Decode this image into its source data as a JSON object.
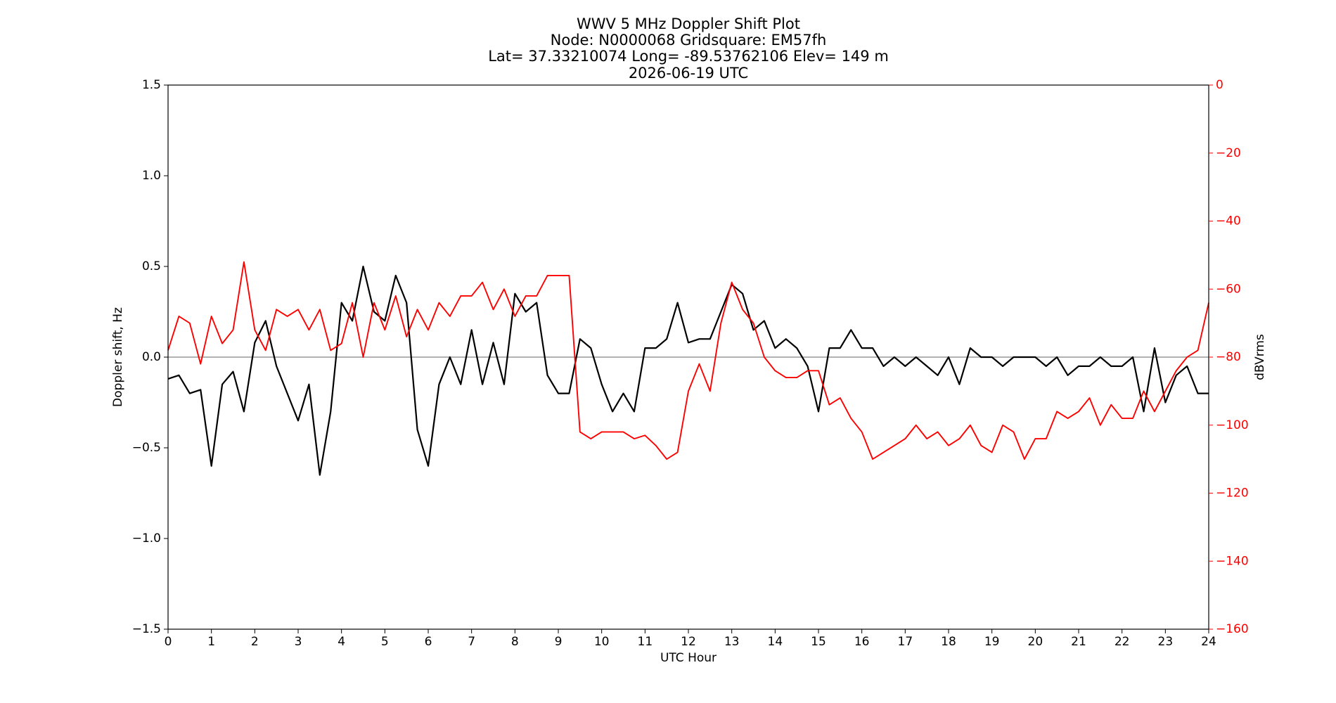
{
  "chart_data": {
    "type": "line",
    "title": [
      "WWV 5 MHz Doppler Shift Plot",
      "Node:  N0000068     Gridsquare:  EM57fh",
      "Lat= 37.33210074    Long= -89.53762106    Elev= 149 m",
      "2026-06-19  UTC"
    ],
    "xlabel": "UTC Hour",
    "ylabel": "Doppler shift, Hz",
    "y2label": "dBVrms",
    "xlim": [
      0,
      24
    ],
    "ylim": [
      -1.5,
      1.5
    ],
    "y2lim": [
      -160,
      0
    ],
    "xticks": [
      0,
      1,
      2,
      3,
      4,
      5,
      6,
      7,
      8,
      9,
      10,
      11,
      12,
      13,
      14,
      15,
      16,
      17,
      18,
      19,
      20,
      21,
      22,
      23,
      24
    ],
    "yticks": [
      {
        "value": -1.5,
        "label": "−1.5"
      },
      {
        "value": -1.0,
        "label": "−1.0"
      },
      {
        "value": -0.5,
        "label": "−0.5"
      },
      {
        "value": 0.0,
        "label": "0.0"
      },
      0.5,
      {
        "value": 1.0,
        "label": "1.0"
      },
      1.5
    ],
    "y2ticks": [
      {
        "value": -160,
        "label": "−160"
      },
      {
        "value": -140,
        "label": "−140"
      },
      {
        "value": -120,
        "label": "−120"
      },
      {
        "value": -100,
        "label": "−100"
      },
      {
        "value": -80,
        "label": "−80"
      },
      {
        "value": -60,
        "label": "−60"
      },
      {
        "value": -40,
        "label": "−40"
      },
      {
        "value": -20,
        "label": "−20"
      },
      0
    ],
    "y2color": "#ff0000",
    "hline": 0,
    "grid": false,
    "x": [
      0,
      0.25,
      0.5,
      0.75,
      1,
      1.25,
      1.5,
      1.75,
      2,
      2.25,
      2.5,
      2.75,
      3,
      3.25,
      3.5,
      3.75,
      4,
      4.25,
      4.5,
      4.75,
      5,
      5.25,
      5.5,
      5.75,
      6,
      6.25,
      6.5,
      6.75,
      7,
      7.25,
      7.5,
      7.75,
      8,
      8.25,
      8.5,
      8.75,
      9,
      9.25,
      9.5,
      9.75,
      10,
      10.25,
      10.5,
      10.75,
      11,
      11.25,
      11.5,
      11.75,
      12,
      12.25,
      12.5,
      12.75,
      13,
      13.25,
      13.5,
      13.75,
      14,
      14.25,
      14.5,
      14.75,
      15,
      15.25,
      15.5,
      15.75,
      16,
      16.25,
      16.5,
      16.75,
      17,
      17.25,
      17.5,
      17.75,
      18,
      18.25,
      18.5,
      18.75,
      19,
      19.25,
      19.5,
      19.75,
      20,
      20.25,
      20.5,
      20.75,
      21,
      21.25,
      21.5,
      21.75,
      22,
      22.25,
      22.5,
      22.75,
      23,
      23.25,
      23.5,
      23.75,
      24
    ],
    "series": [
      {
        "color": "#000000",
        "values": [
          -0.12,
          -0.1,
          -0.2,
          -0.18,
          -0.6,
          -0.15,
          -0.08,
          -0.3,
          0.08,
          0.2,
          -0.05,
          -0.2,
          -0.35,
          -0.15,
          -0.65,
          -0.3,
          0.3,
          0.2,
          0.5,
          0.25,
          0.2,
          0.45,
          0.3,
          -0.4,
          -0.6,
          -0.15,
          0,
          -0.15,
          0.15,
          -0.15,
          0.08,
          -0.15,
          0.35,
          0.25,
          0.3,
          -0.1,
          -0.2,
          -0.2,
          0.1,
          0.05,
          -0.15,
          -0.3,
          -0.2,
          -0.3,
          0.05,
          0.05,
          0.1,
          0.3,
          0.08,
          0.1,
          0.1,
          0.25,
          0.4,
          0.35,
          0.15,
          0.2,
          0.05,
          0.1,
          0.05,
          -0.05,
          -0.3,
          0.05,
          0.05,
          0.15,
          0.05,
          0.05,
          -0.05,
          0,
          -0.05,
          0,
          -0.05,
          -0.1,
          0,
          -0.15,
          0.05,
          0,
          0,
          -0.05,
          0,
          0,
          0,
          -0.05,
          0,
          -0.1,
          -0.05,
          -0.05,
          0,
          -0.05,
          -0.05,
          0,
          -0.3,
          0.05,
          -0.25,
          -0.1,
          -0.05,
          -0.2,
          -0.2
        ]
      },
      {
        "color": "#ff0000",
        "axis": "y2",
        "values": [
          -78,
          -68,
          -70,
          -82,
          -68,
          -76,
          -72,
          -52,
          -72,
          -78,
          -66,
          -68,
          -66,
          -72,
          -66,
          -78,
          -76,
          -64,
          -80,
          -64,
          -72,
          -62,
          -74,
          -66,
          -72,
          -64,
          -68,
          -62,
          -62,
          -58,
          -66,
          -60,
          -68,
          -62,
          -62,
          -56,
          -56,
          -56,
          -102,
          -104,
          -102,
          -102,
          -102,
          -104,
          -103,
          -106,
          -110,
          -108,
          -90,
          -82,
          -90,
          -70,
          -58,
          -66,
          -70,
          -80,
          -84,
          -86,
          -86,
          -84,
          -84,
          -94,
          -92,
          -98,
          -102,
          -110,
          -108,
          -106,
          -104,
          -100,
          -104,
          -102,
          -106,
          -104,
          -100,
          -106,
          -108,
          -100,
          -102,
          -110,
          -104,
          -104,
          -96,
          -98,
          -96,
          -92,
          -100,
          -94,
          -98,
          -98,
          -90,
          -96,
          -90,
          -84,
          -80,
          -78,
          -64
        ]
      }
    ]
  }
}
